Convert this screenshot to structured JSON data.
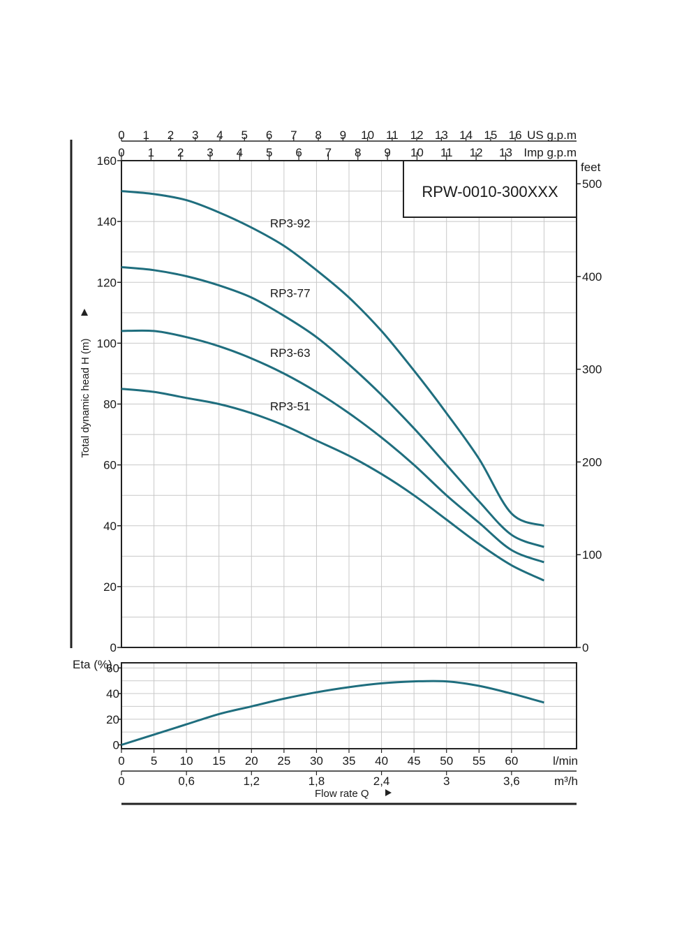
{
  "chart_data": [
    {
      "type": "line",
      "title": "RPW-0010-300XXX",
      "ylabel": "Total dynamic head H (m)",
      "ylim": [
        0,
        160
      ],
      "yticks": [
        0,
        20,
        40,
        60,
        80,
        100,
        120,
        140,
        160
      ],
      "xlim": [
        0,
        70
      ],
      "grid": true,
      "secondary_y": {
        "label": "feet",
        "ticks": [
          0,
          100,
          200,
          300,
          400,
          500
        ]
      },
      "top_axis_us": {
        "label": "US g.p.m",
        "ticks": [
          "0",
          "1",
          "2",
          "3",
          "4",
          "5",
          "6",
          "7",
          "8",
          "9",
          "10",
          "11",
          "12",
          "13",
          "14",
          "15",
          "16"
        ]
      },
      "top_axis_imp": {
        "label": "Imp g.p.m",
        "ticks": [
          "0",
          "1",
          "2",
          "3",
          "4",
          "5",
          "6",
          "7",
          "8",
          "9",
          "10",
          "11",
          "12",
          "13"
        ]
      },
      "series": [
        {
          "name": "RP3-92",
          "color": "#1f6e7e",
          "x": [
            0,
            5,
            10,
            15,
            20,
            25,
            30,
            35,
            40,
            45,
            50,
            55,
            60,
            65
          ],
          "y": [
            150,
            149,
            147,
            143,
            138,
            132,
            124,
            115,
            104,
            91,
            77,
            62,
            44,
            40
          ]
        },
        {
          "name": "RP3-77",
          "color": "#1f6e7e",
          "x": [
            0,
            5,
            10,
            15,
            20,
            25,
            30,
            35,
            40,
            45,
            50,
            55,
            60,
            65
          ],
          "y": [
            125,
            124,
            122,
            119,
            115,
            109,
            102,
            93,
            83,
            72,
            60,
            48,
            37,
            33
          ]
        },
        {
          "name": "RP3-63",
          "color": "#1f6e7e",
          "x": [
            0,
            5,
            10,
            15,
            20,
            25,
            30,
            35,
            40,
            45,
            50,
            55,
            60,
            65
          ],
          "y": [
            104,
            104,
            102,
            99,
            95,
            90,
            84,
            77,
            69,
            60,
            50,
            41,
            32,
            28
          ]
        },
        {
          "name": "RP3-51",
          "color": "#1f6e7e",
          "x": [
            0,
            5,
            10,
            15,
            20,
            25,
            30,
            35,
            40,
            45,
            50,
            55,
            60,
            65
          ],
          "y": [
            85,
            84,
            82,
            80,
            77,
            73,
            68,
            63,
            57,
            50,
            42,
            34,
            27,
            22
          ]
        }
      ]
    },
    {
      "type": "line",
      "ylabel": "Eta (%)",
      "ylim": [
        0,
        60
      ],
      "yticks": [
        0,
        20,
        40,
        60
      ],
      "xlim": [
        0,
        70
      ],
      "grid": true,
      "xlabel": "Flow rate Q",
      "x_lpm": {
        "label": "l/min",
        "ticks": [
          0,
          5,
          10,
          15,
          20,
          25,
          30,
          35,
          40,
          45,
          50,
          55,
          60
        ]
      },
      "x_m3h": {
        "label": "m³/h",
        "ticks": [
          "0",
          "0,6",
          "1,2",
          "1,8",
          "2,4",
          "3",
          "3,6"
        ]
      },
      "series": [
        {
          "color": "#1f6e7e",
          "x": [
            0,
            5,
            10,
            15,
            20,
            25,
            30,
            35,
            40,
            45,
            50,
            55,
            60,
            65
          ],
          "y": [
            0,
            8,
            16,
            24,
            30,
            36,
            41,
            45,
            48,
            49.5,
            49.5,
            46,
            40,
            33
          ]
        }
      ]
    }
  ]
}
